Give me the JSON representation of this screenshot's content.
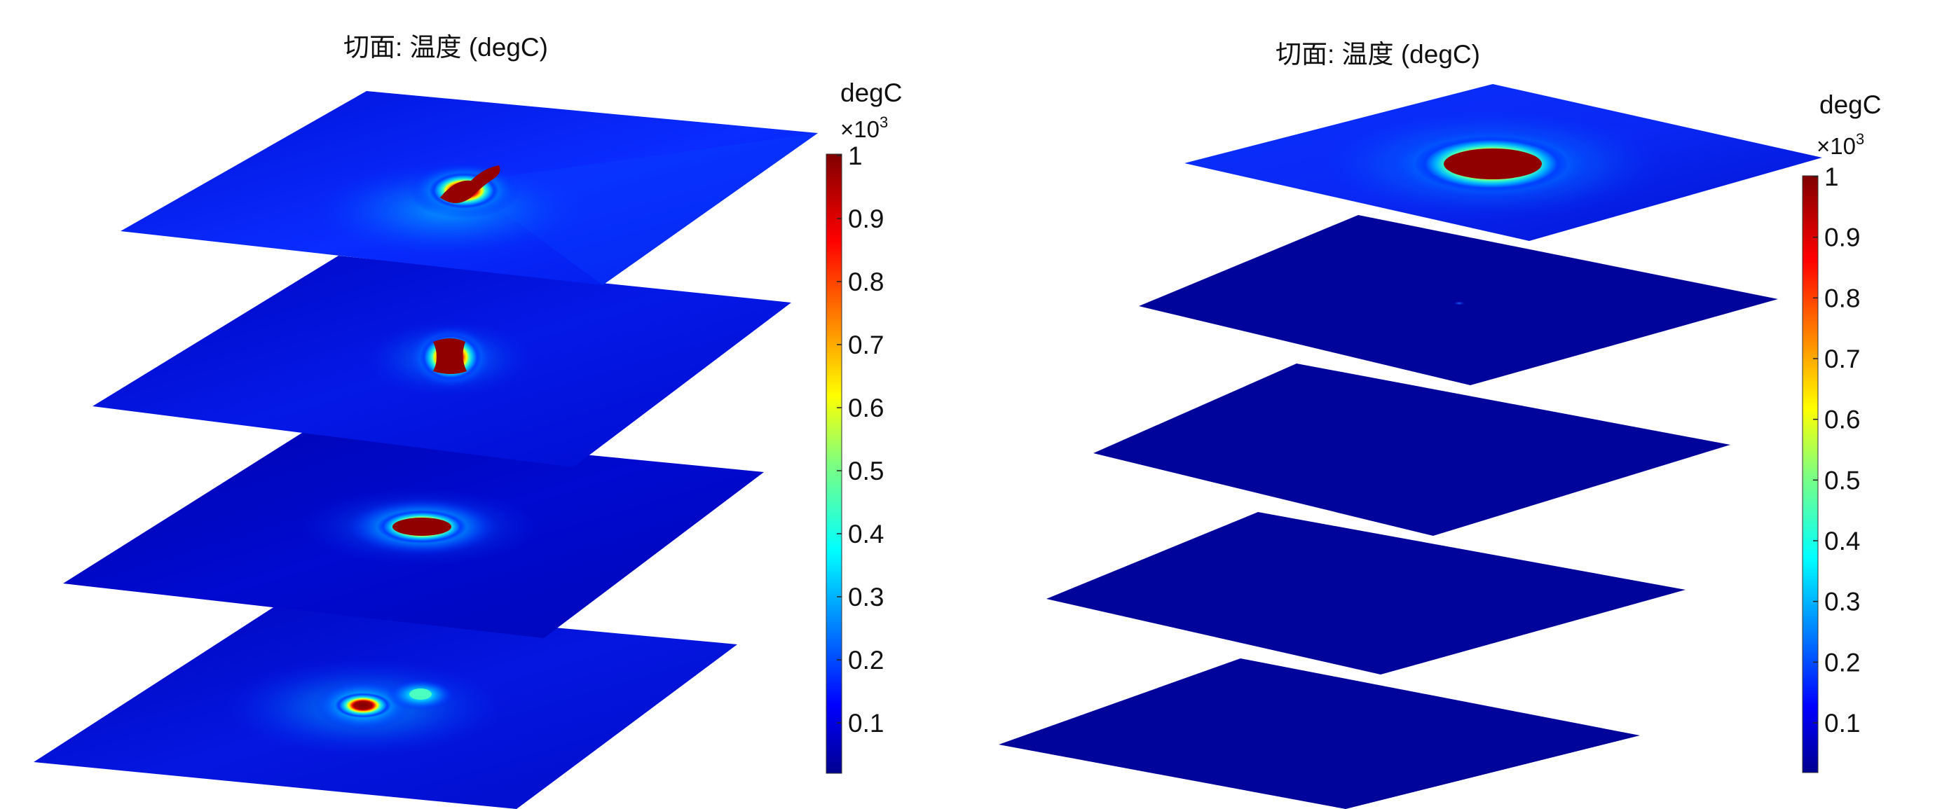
{
  "panels": [
    {
      "title": "切面: 温度 (degC)",
      "colorbar": {
        "unit": "degC",
        "scale_prefix": "×10",
        "scale_exponent": "3",
        "ticks": [
          "1",
          "0.9",
          "0.8",
          "0.7",
          "0.6",
          "0.5",
          "0.4",
          "0.3",
          "0.2",
          "0.1"
        ]
      }
    },
    {
      "title": "切面: 温度 (degC)",
      "colorbar": {
        "unit": "degC",
        "scale_prefix": "×10",
        "scale_exponent": "3",
        "ticks": [
          "1",
          "0.9",
          "0.8",
          "0.7",
          "0.6",
          "0.5",
          "0.4",
          "0.3",
          "0.2",
          "0.1"
        ]
      }
    }
  ],
  "chart_data": [
    {
      "type": "heatmap",
      "title": "切面: 温度 (degC)",
      "colormap": "jet",
      "color_range": [
        0.02,
        1.0
      ],
      "color_range_unit": "degC ×10^3",
      "slices": [
        {
          "level": 1,
          "hotspot": "elongated double spot",
          "peak": 1.0,
          "background": 0.18
        },
        {
          "level": 2,
          "hotspot": "single compact spot",
          "peak": 1.0,
          "background": 0.1
        },
        {
          "level": 3,
          "hotspot": "horizontal elongated spot",
          "peak": 1.0,
          "background": 0.06
        },
        {
          "level": 4,
          "hotspot": "two separate small spots",
          "peak": 0.95,
          "background": 0.08
        }
      ]
    },
    {
      "type": "heatmap",
      "title": "切面: 温度 (degC)",
      "colormap": "jet",
      "color_range": [
        0.02,
        1.0
      ],
      "color_range_unit": "degC ×10^3",
      "slices": [
        {
          "level": 1,
          "hotspot": "large elongated spot",
          "peak": 1.0,
          "background": 0.15
        },
        {
          "level": 2,
          "hotspot": "tiny faint spot",
          "peak": 0.2,
          "background": 0.03
        },
        {
          "level": 3,
          "hotspot": "none",
          "peak": 0.03,
          "background": 0.03
        },
        {
          "level": 4,
          "hotspot": "none",
          "peak": 0.03,
          "background": 0.03
        },
        {
          "level": 5,
          "hotspot": "none",
          "peak": 0.03,
          "background": 0.03
        }
      ]
    }
  ]
}
